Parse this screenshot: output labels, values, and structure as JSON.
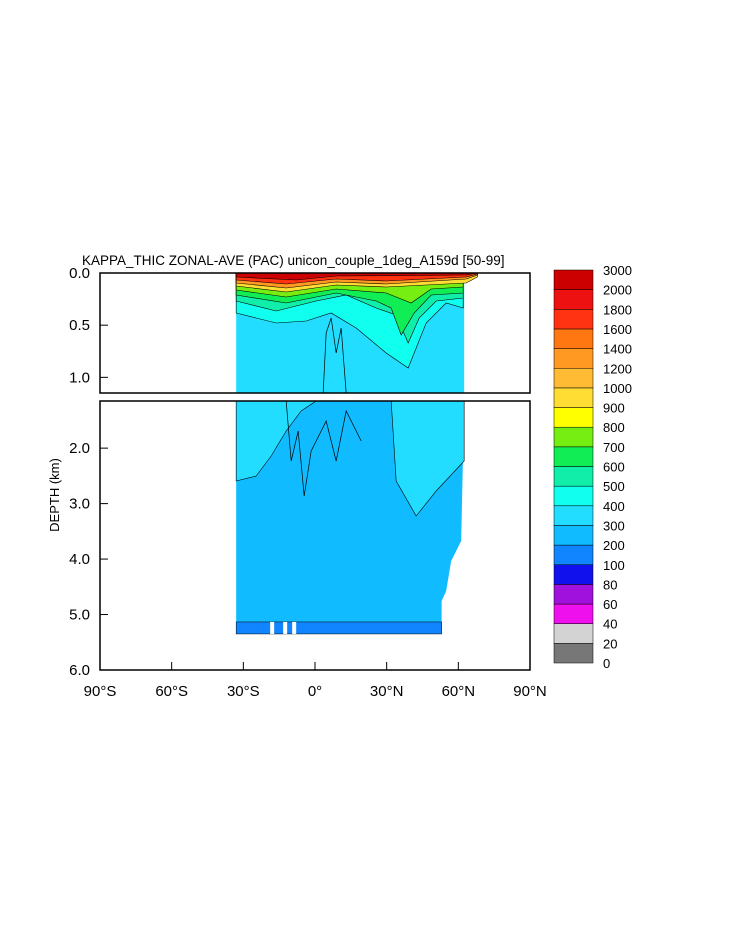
{
  "chart_data": {
    "type": "heatmap",
    "title": "KAPPA_THIC ZONAL-AVE (PAC) unicon_couple_1deg_A159d [50-99]",
    "ylabel": "DEPTH (km)",
    "xlabel": "",
    "xlim": [
      -90,
      90
    ],
    "ylim": [
      6.0,
      0.0
    ],
    "y_break_km": 1.15,
    "x_ticks": [
      {
        "value": -90,
        "label": "90°S"
      },
      {
        "value": -60,
        "label": "60°S"
      },
      {
        "value": -30,
        "label": "30°S"
      },
      {
        "value": 0,
        "label": "0°"
      },
      {
        "value": 30,
        "label": "30°N"
      },
      {
        "value": 60,
        "label": "60°N"
      },
      {
        "value": 90,
        "label": "90°N"
      }
    ],
    "y_ticks_upper": [
      {
        "value": 0.0,
        "label": "0.0"
      },
      {
        "value": 0.5,
        "label": "0.5"
      },
      {
        "value": 1.0,
        "label": "1.0"
      }
    ],
    "y_ticks_lower": [
      {
        "value": 2.0,
        "label": "2.0"
      },
      {
        "value": 3.0,
        "label": "3.0"
      },
      {
        "value": 4.0,
        "label": "4.0"
      },
      {
        "value": 5.0,
        "label": "5.0"
      },
      {
        "value": 6.0,
        "label": "6.0"
      }
    ],
    "colorbar": {
      "labels": [
        "0",
        "20",
        "40",
        "60",
        "80",
        "100",
        "200",
        "300",
        "400",
        "500",
        "600",
        "700",
        "800",
        "900",
        "1000",
        "1200",
        "1400",
        "1600",
        "1800",
        "2000",
        "3000"
      ],
      "colors": [
        "#777777",
        "#d3d3d3",
        "#ee11ee",
        "#a011dd",
        "#1111ee",
        "#1185ff",
        "#11bbff",
        "#22ddff",
        "#11ffee",
        "#11eeaa",
        "#11ee55",
        "#77ee11",
        "#ffff00",
        "#ffdd33",
        "#ffbb33",
        "#ff9922",
        "#ff7711",
        "#ff3311",
        "#ee1111",
        "#cc0000"
      ]
    },
    "domain": {
      "lat_south": -33,
      "lat_north_surface": 68,
      "lat_north_deep": 53,
      "bottom_depth_km": 5.35
    }
  }
}
